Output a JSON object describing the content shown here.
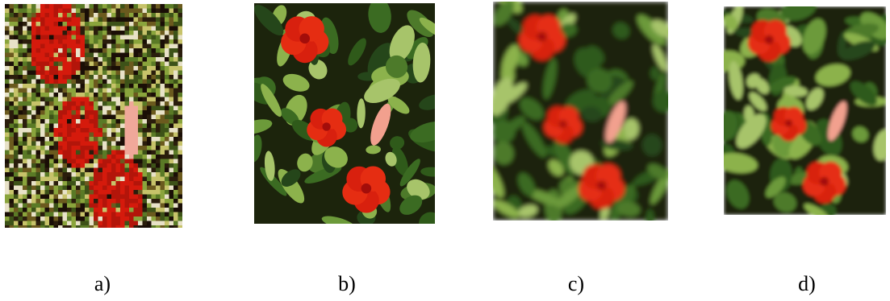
{
  "panels": [
    {
      "label": "a)"
    },
    {
      "label": "b)"
    },
    {
      "label": "c)"
    },
    {
      "label": "d)"
    }
  ]
}
